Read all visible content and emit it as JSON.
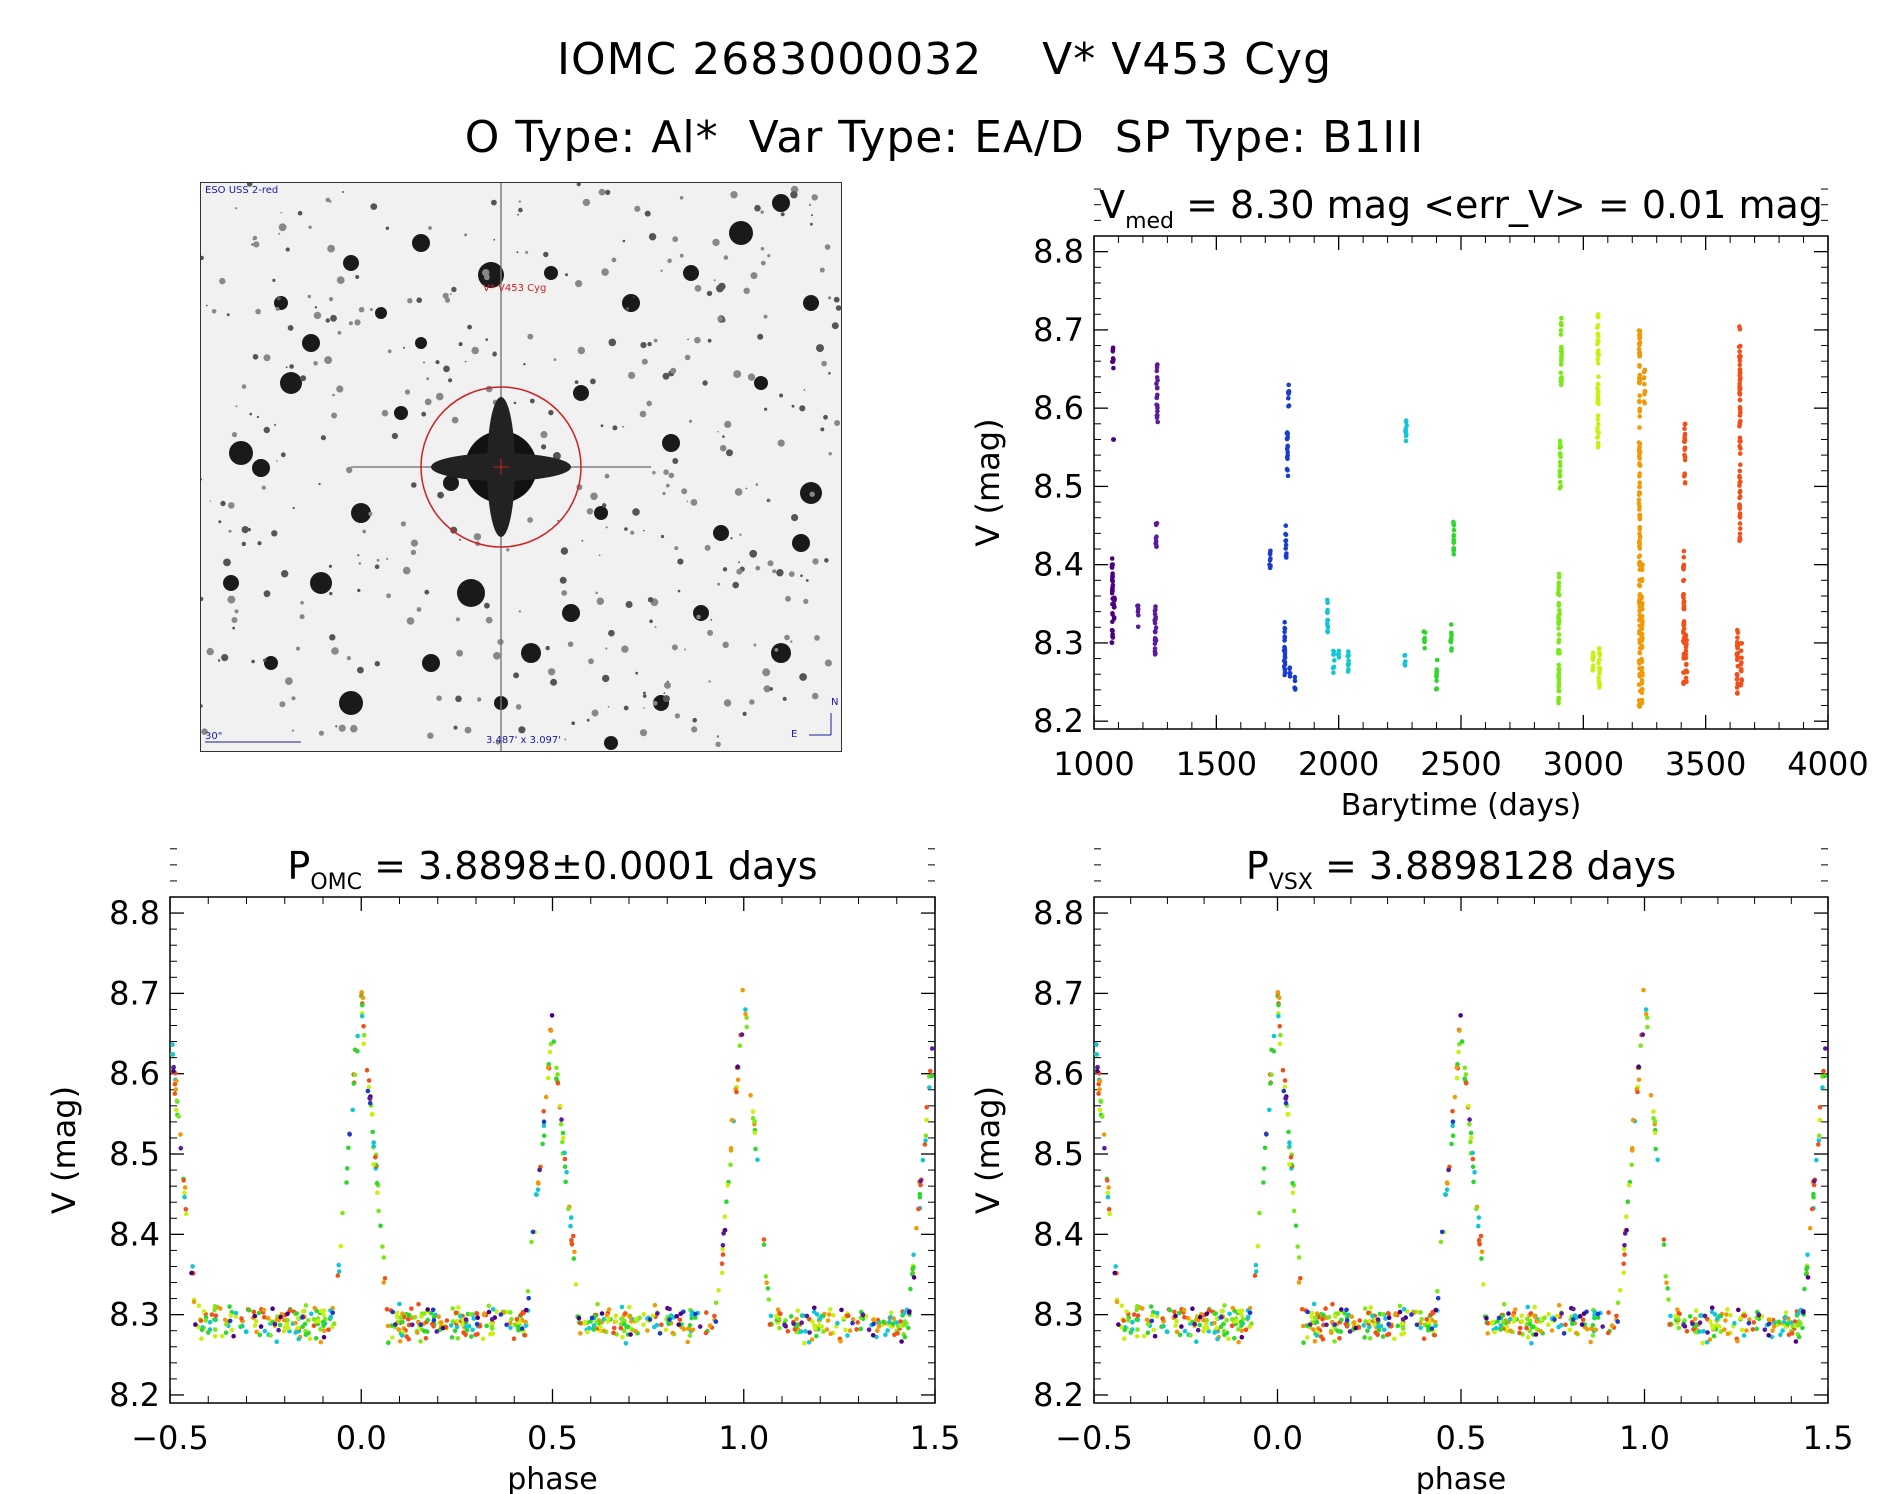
{
  "header": {
    "line1": "IOMC 2683000032    V* V453 Cyg",
    "line2": "O Type: Al*  Var Type: EA/D  SP Type: B1III"
  },
  "sky_image": {
    "survey_label": "ESO USS 2-red",
    "target_label": "V* V453 Cyg",
    "scale_label": "30\"",
    "size_label": "3.487' x 3.097'",
    "compass_n": "N",
    "compass_e": "E"
  },
  "colors": {
    "series": [
      "#4b0082",
      "#5a1a9e",
      "#1a3ccc",
      "#12c6d6",
      "#2ed62e",
      "#7ce81a",
      "#c8f010",
      "#f09a0a",
      "#f0501a"
    ],
    "circle": "#cc2222"
  },
  "chart_data": [
    {
      "type": "scatter",
      "id": "lightcurve",
      "title_main": "V",
      "title_sub": "med",
      "title_rest": " = 8.30 mag <err_V> = 0.01 mag",
      "xlabel": "Barytime (days)",
      "ylabel": "V (mag)",
      "xlim": [
        1000,
        4000
      ],
      "ylim": [
        8.82,
        8.19
      ],
      "xticks": [
        "1000",
        "1500",
        "2000",
        "2500",
        "3000",
        "3500",
        "4000"
      ],
      "yticks": [
        "8.2",
        "8.3",
        "8.4",
        "8.5",
        "8.6",
        "8.7",
        "8.8"
      ],
      "series": [
        {
          "name": "s1",
          "x": [
            1075,
            1080,
            1078,
            1082
          ],
          "v": [
            [
              8.3,
              8.41
            ],
            [
              8.56,
              8.56
            ],
            [
              8.65,
              8.68
            ],
            [
              8.33,
              8.36
            ]
          ]
        },
        {
          "name": "s2",
          "x": [
            1180,
            1250,
            1255,
            1258,
            1252
          ],
          "v": [
            [
              8.32,
              8.35
            ],
            [
              8.28,
              8.35
            ],
            [
              8.42,
              8.46
            ],
            [
              8.58,
              8.66
            ],
            [
              8.3,
              8.32
            ]
          ]
        },
        {
          "name": "s3",
          "x": [
            1720,
            1780,
            1785,
            1790,
            1795,
            1800,
            1820
          ],
          "v": [
            [
              8.39,
              8.43
            ],
            [
              8.25,
              8.33
            ],
            [
              8.4,
              8.45
            ],
            [
              8.51,
              8.57
            ],
            [
              8.6,
              8.63
            ],
            [
              8.25,
              8.27
            ],
            [
              8.24,
              8.26
            ]
          ]
        },
        {
          "name": "s4",
          "x": [
            1955,
            1980,
            2000,
            2040,
            2270,
            2275
          ],
          "v": [
            [
              8.31,
              8.36
            ],
            [
              8.26,
              8.29
            ],
            [
              8.28,
              8.3
            ],
            [
              8.26,
              8.3
            ],
            [
              8.27,
              8.29
            ],
            [
              8.55,
              8.59
            ]
          ]
        },
        {
          "name": "s5",
          "x": [
            2350,
            2400,
            2460,
            2470
          ],
          "v": [
            [
              8.29,
              8.32
            ],
            [
              8.24,
              8.28
            ],
            [
              8.29,
              8.33
            ],
            [
              8.41,
              8.46
            ]
          ]
        },
        {
          "name": "s6",
          "x": [
            2900,
            2905,
            2910
          ],
          "v": [
            [
              8.22,
              8.39
            ],
            [
              8.49,
              8.56
            ],
            [
              8.63,
              8.72
            ]
          ]
        },
        {
          "name": "s7",
          "x": [
            3040,
            3060,
            3065
          ],
          "v": [
            [
              8.26,
              8.3
            ],
            [
              8.55,
              8.72
            ],
            [
              8.24,
              8.3
            ]
          ]
        },
        {
          "name": "s8",
          "x": [
            3230,
            3240,
            3250
          ],
          "v": [
            [
              8.21,
              8.7
            ],
            [
              8.22,
              8.4
            ],
            [
              8.6,
              8.65
            ]
          ]
        },
        {
          "name": "s9",
          "x": [
            3410,
            3415,
            3420
          ],
          "v": [
            [
              8.24,
              8.42
            ],
            [
              8.5,
              8.58
            ],
            [
              8.25,
              8.31
            ]
          ]
        },
        {
          "name": "s10",
          "x": [
            3630,
            3640,
            3645
          ],
          "v": [
            [
              8.22,
              8.32
            ],
            [
              8.43,
              8.71
            ],
            [
              8.24,
              8.3
            ]
          ]
        }
      ]
    },
    {
      "type": "scatter",
      "id": "phase_omc",
      "title_main": "P",
      "title_sub": "OMC",
      "title_rest": " = 3.8898±0.0001 days",
      "xlabel": "phase",
      "ylabel": "V (mag)",
      "xlim": [
        -0.5,
        1.5
      ],
      "ylim": [
        8.82,
        8.19
      ],
      "xticks": [
        "−0.5",
        "0.0",
        "0.5",
        "1.0",
        "1.5"
      ],
      "yticks": [
        "8.2",
        "8.3",
        "8.4",
        "8.5",
        "8.6",
        "8.7",
        "8.8"
      ],
      "baseline_mag": 8.29,
      "primary_depth_mag": 8.7,
      "secondary_depth_mag": 8.66,
      "eclipse_half_width": 0.07
    },
    {
      "type": "scatter",
      "id": "phase_vsx",
      "title_main": "P",
      "title_sub": "VSX",
      "title_rest": " = 3.8898128 days",
      "xlabel": "phase",
      "ylabel": "V (mag)",
      "xlim": [
        -0.5,
        1.5
      ],
      "ylim": [
        8.82,
        8.19
      ],
      "xticks": [
        "−0.5",
        "0.0",
        "0.5",
        "1.0",
        "1.5"
      ],
      "yticks": [
        "8.2",
        "8.3",
        "8.4",
        "8.5",
        "8.6",
        "8.7",
        "8.8"
      ],
      "baseline_mag": 8.29,
      "primary_depth_mag": 8.7,
      "secondary_depth_mag": 8.66,
      "eclipse_half_width": 0.07
    }
  ]
}
